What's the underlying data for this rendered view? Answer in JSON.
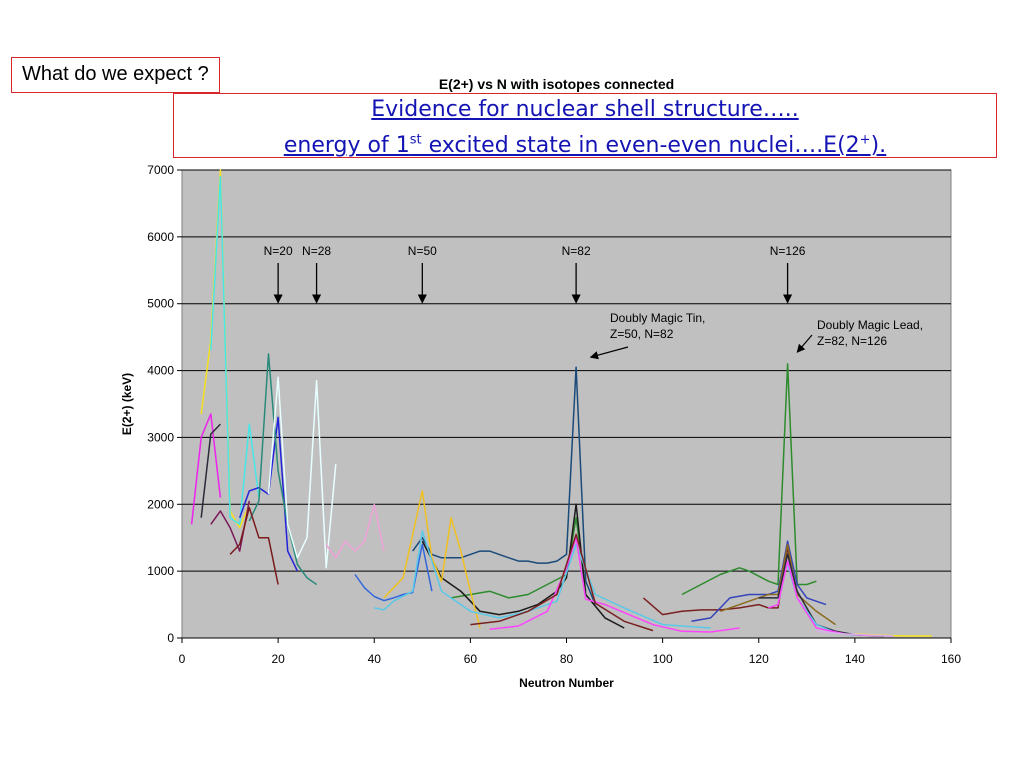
{
  "slide": {
    "question": "What do we expect ?",
    "title_line1": "Evidence for nuclear shell structure…..",
    "title_line2_pre": "energy of 1",
    "title_line2_sup": "st",
    "title_line2_mid": " excited state in even-even nuclei….E(2",
    "title_line2_sup2": "+",
    "title_line2_post": ")."
  },
  "chart_data": {
    "type": "line",
    "title": "E(2+) vs N with isotopes connected",
    "xlabel": "Neutron Number",
    "ylabel": "E(2+) (keV)",
    "xlim": [
      0,
      160
    ],
    "ylim": [
      0,
      7000
    ],
    "xticks": [
      0,
      20,
      40,
      60,
      80,
      100,
      120,
      140,
      160
    ],
    "yticks": [
      0,
      1000,
      2000,
      3000,
      4000,
      5000,
      6000,
      7000
    ],
    "grid": "horizontal",
    "background": "#c0c0c0",
    "magic_markers": [
      {
        "label": "N=20",
        "x": 20
      },
      {
        "label": "N=28",
        "x": 28
      },
      {
        "label": "N=50",
        "x": 50
      },
      {
        "label": "N=82",
        "x": 82
      },
      {
        "label": "N=126",
        "x": 126
      }
    ],
    "annotations": [
      {
        "text": "Doubly Magic Tin,\nZ=50, N=82",
        "point": [
          85,
          4050
        ]
      },
      {
        "text": "Doubly Magic Lead,\nZ=82, N=126",
        "point": [
          128,
          4050
        ]
      }
    ],
    "series": [
      {
        "color": "#f5e11e",
        "x": [
          4,
          6,
          8,
          10,
          12,
          14
        ],
        "y": [
          3350,
          4450,
          7000,
          1900,
          1650,
          2000
        ]
      },
      {
        "color": "#48e6e6",
        "x": [
          6,
          8,
          10,
          12,
          14,
          16
        ],
        "y": [
          4300,
          6900,
          1800,
          1700,
          3200,
          2100
        ]
      },
      {
        "color": "#ee22ee",
        "x": [
          2,
          4,
          6,
          8
        ],
        "y": [
          1700,
          3000,
          3350,
          2100
        ]
      },
      {
        "color": "#2a2a3a",
        "x": [
          4,
          6,
          8
        ],
        "y": [
          1800,
          3050,
          3200
        ]
      },
      {
        "color": "#7a1a5a",
        "x": [
          6,
          8,
          10,
          12,
          14
        ],
        "y": [
          1700,
          1900,
          1650,
          1300,
          2050
        ]
      },
      {
        "color": "#2222dd",
        "x": [
          12,
          14,
          16,
          18,
          20,
          22,
          24
        ],
        "y": [
          1800,
          2200,
          2250,
          2150,
          3300,
          1300,
          1000
        ]
      },
      {
        "color": "#2a8a7a",
        "x": [
          14,
          16,
          18,
          20,
          22,
          24,
          26,
          28
        ],
        "y": [
          1750,
          2050,
          4250,
          2500,
          1700,
          1100,
          900,
          800
        ]
      },
      {
        "color": "#e8ffff",
        "x": [
          18,
          20,
          22,
          24,
          26,
          28,
          30,
          32
        ],
        "y": [
          2150,
          3900,
          1700,
          1200,
          1500,
          3850,
          1050,
          2600
        ]
      },
      {
        "color": "#7a1a1a",
        "x": [
          10,
          12,
          14,
          16,
          18,
          20
        ],
        "y": [
          1250,
          1400,
          1950,
          1500,
          1500,
          800
        ]
      },
      {
        "color": "#f0a0d8",
        "x": [
          30,
          32,
          34,
          36,
          38,
          40,
          42
        ],
        "y": [
          1400,
          1200,
          1450,
          1300,
          1450,
          2000,
          1300
        ]
      },
      {
        "color": "#1a4a7a",
        "x": [
          48,
          50,
          52,
          54,
          56,
          58,
          60,
          62,
          64,
          66,
          68,
          70,
          72,
          74,
          76,
          78,
          80,
          82,
          84,
          86
        ],
        "y": [
          1300,
          1500,
          1250,
          1200,
          1200,
          1200,
          1250,
          1300,
          1300,
          1250,
          1200,
          1150,
          1150,
          1120,
          1120,
          1150,
          1250,
          4050,
          850,
          500
        ]
      },
      {
        "color": "#2e8b2e",
        "x": [
          56,
          60,
          64,
          68,
          72,
          76,
          80,
          82,
          84
        ],
        "y": [
          600,
          650,
          700,
          600,
          650,
          800,
          950,
          1800,
          700
        ]
      },
      {
        "color": "#1a1a1a",
        "x": [
          50,
          54,
          58,
          62,
          66,
          70,
          74,
          78,
          80,
          82,
          84,
          88,
          92
        ],
        "y": [
          1450,
          900,
          700,
          400,
          350,
          400,
          500,
          700,
          900,
          2000,
          650,
          300,
          150
        ]
      },
      {
        "color": "#f0c020",
        "x": [
          42,
          46,
          50,
          52,
          54,
          56,
          58,
          60,
          62
        ],
        "y": [
          600,
          900,
          2200,
          1200,
          850,
          1800,
          1300,
          700,
          150
        ]
      },
      {
        "color": "#3366dd",
        "x": [
          36,
          38,
          40,
          42,
          44,
          46,
          48,
          50,
          52
        ],
        "y": [
          950,
          750,
          620,
          560,
          600,
          650,
          680,
          1400,
          700
        ]
      },
      {
        "color": "#5ac8e8",
        "x": [
          40,
          42,
          44,
          48,
          50,
          54,
          60,
          66,
          72,
          78,
          82,
          86,
          92,
          100,
          110
        ],
        "y": [
          450,
          420,
          550,
          700,
          1600,
          700,
          400,
          300,
          400,
          550,
          1400,
          650,
          450,
          200,
          150
        ]
      },
      {
        "color": "#ff44ff",
        "x": [
          64,
          70,
          76,
          80,
          82,
          84,
          88,
          92,
          98,
          104,
          110,
          116
        ],
        "y": [
          130,
          180,
          400,
          1050,
          1500,
          580,
          500,
          380,
          200,
          100,
          90,
          150
        ]
      },
      {
        "color": "#7a2020",
        "x": [
          60,
          66,
          72,
          78,
          82,
          86,
          92,
          98
        ],
        "y": [
          200,
          250,
          400,
          650,
          1550,
          520,
          250,
          110
        ]
      },
      {
        "color": "#2e8b2e",
        "x": [
          104,
          108,
          112,
          116,
          118,
          122,
          124,
          126,
          128,
          130,
          132
        ],
        "y": [
          650,
          800,
          950,
          1050,
          1000,
          850,
          800,
          4100,
          800,
          800,
          850
        ]
      },
      {
        "color": "#7a2020",
        "x": [
          96,
          100,
          104,
          108,
          112,
          116,
          120,
          122,
          124,
          126,
          128
        ],
        "y": [
          600,
          350,
          400,
          420,
          420,
          450,
          500,
          450,
          450,
          1350,
          650
        ]
      },
      {
        "color": "#3344bb",
        "x": [
          106,
          110,
          114,
          118,
          122,
          124,
          126,
          128,
          130,
          134
        ],
        "y": [
          250,
          300,
          600,
          650,
          650,
          700,
          1450,
          800,
          600,
          500
        ]
      },
      {
        "color": "#8b6a20",
        "x": [
          112,
          118,
          122,
          124,
          126,
          128,
          132,
          136
        ],
        "y": [
          400,
          550,
          650,
          650,
          1400,
          650,
          400,
          200
        ]
      },
      {
        "color": "#2a2a3a",
        "x": [
          120,
          124,
          126,
          128,
          132,
          136,
          140,
          146
        ],
        "y": [
          600,
          600,
          1250,
          700,
          200,
          100,
          50,
          30
        ]
      },
      {
        "color": "#5ac8e8",
        "x": [
          126,
          128,
          132,
          136,
          140
        ],
        "y": [
          1100,
          600,
          200,
          80,
          40
        ]
      },
      {
        "color": "#ff44ff",
        "x": [
          122,
          124,
          126,
          128,
          132,
          138,
          142,
          148
        ],
        "y": [
          450,
          500,
          1150,
          600,
          150,
          60,
          40,
          30
        ]
      },
      {
        "color": "#f5e11e",
        "x": [
          140,
          146,
          150,
          156
        ],
        "y": [
          60,
          40,
          30,
          30
        ]
      },
      {
        "color": "#d8b0e8",
        "x": [
          132,
          138,
          144,
          148
        ],
        "y": [
          100,
          60,
          40,
          30
        ]
      }
    ]
  }
}
